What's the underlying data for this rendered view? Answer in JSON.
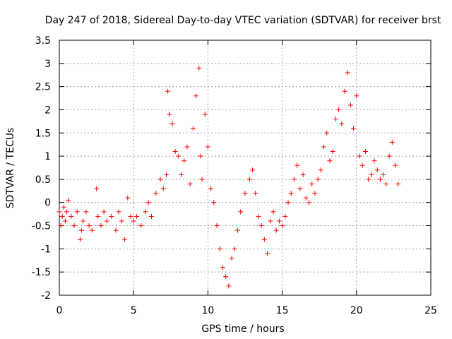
{
  "chart_data": {
    "type": "scatter",
    "title": "Day 247 of 2018, Sidereal Day-to-day VTEC variation (SDTVAR) for receiver brst",
    "xlabel": "GPS time / hours",
    "ylabel": "SDTVAR / TECUs",
    "xlim": [
      0,
      25
    ],
    "ylim": [
      -2,
      3.5
    ],
    "xticks": [
      0,
      5,
      10,
      15,
      20,
      25
    ],
    "xtick_labels": [
      "0",
      "5",
      "10",
      "15",
      "20",
      "25"
    ],
    "yticks": [
      -2,
      -1.5,
      -1,
      -0.5,
      0,
      0.5,
      1,
      1.5,
      2,
      2.5,
      3,
      3.5
    ],
    "ytick_labels": [
      "-2",
      "-1.5",
      "-1",
      "-0.5",
      "0",
      "0.5",
      "1",
      "1.5",
      "2",
      "2.5",
      "3",
      "3.5"
    ],
    "grid": true,
    "marker": "+",
    "marker_color": "#ff0000",
    "series": [
      {
        "name": "SDTVAR",
        "x": [
          0.0,
          0.1,
          0.2,
          0.3,
          0.4,
          0.5,
          0.6,
          0.8,
          1.0,
          1.2,
          1.4,
          1.5,
          1.6,
          1.8,
          2.0,
          2.2,
          2.5,
          2.6,
          2.8,
          3.0,
          3.2,
          3.5,
          3.8,
          4.0,
          4.2,
          4.4,
          4.6,
          4.8,
          5.0,
          5.2,
          5.5,
          5.8,
          6.0,
          6.2,
          6.5,
          6.8,
          7.0,
          7.2,
          7.3,
          7.4,
          7.6,
          7.8,
          8.0,
          8.2,
          8.4,
          8.6,
          8.8,
          9.0,
          9.2,
          9.4,
          9.5,
          9.6,
          9.8,
          10.0,
          10.2,
          10.4,
          10.6,
          10.8,
          11.0,
          11.2,
          11.4,
          11.6,
          11.8,
          12.0,
          12.2,
          12.5,
          12.8,
          13.0,
          13.2,
          13.4,
          13.6,
          13.8,
          14.0,
          14.2,
          14.4,
          14.6,
          14.8,
          15.0,
          15.2,
          15.4,
          15.6,
          15.8,
          16.0,
          16.2,
          16.4,
          16.6,
          16.8,
          17.0,
          17.2,
          17.4,
          17.6,
          17.8,
          18.0,
          18.2,
          18.4,
          18.6,
          18.8,
          19.0,
          19.2,
          19.4,
          19.6,
          19.8,
          20.0,
          20.2,
          20.4,
          20.6,
          20.8,
          21.0,
          21.2,
          21.4,
          21.6,
          21.8,
          22.0,
          22.2,
          22.4,
          22.6,
          22.8
        ],
        "y": [
          -0.2,
          -0.5,
          -0.3,
          -0.1,
          -0.4,
          -0.2,
          0.05,
          -0.3,
          -0.5,
          -0.2,
          -0.8,
          -0.6,
          -0.4,
          -0.2,
          -0.5,
          -0.6,
          0.3,
          -0.3,
          -0.5,
          -0.2,
          -0.4,
          -0.3,
          -0.6,
          -0.2,
          -0.4,
          -0.8,
          0.1,
          -0.3,
          -0.4,
          -0.3,
          -0.5,
          -0.2,
          0.0,
          -0.3,
          0.2,
          0.5,
          0.3,
          0.6,
          2.4,
          1.9,
          1.7,
          1.1,
          1.0,
          0.6,
          0.9,
          1.2,
          0.4,
          1.6,
          2.3,
          2.9,
          1.0,
          0.5,
          1.9,
          1.2,
          0.3,
          0.0,
          -0.5,
          -1.0,
          -1.4,
          -1.6,
          -1.8,
          -1.2,
          -1.0,
          -0.6,
          -0.2,
          0.2,
          0.5,
          0.7,
          0.2,
          -0.3,
          -0.5,
          -0.8,
          -1.1,
          -0.4,
          -0.2,
          -0.6,
          -0.4,
          -0.5,
          -0.3,
          0.0,
          0.2,
          0.5,
          0.8,
          0.3,
          0.6,
          0.1,
          0.0,
          0.4,
          0.2,
          0.5,
          0.7,
          1.2,
          1.5,
          0.9,
          1.1,
          1.8,
          2.0,
          1.7,
          2.4,
          2.8,
          2.1,
          1.6,
          2.3,
          1.0,
          0.8,
          1.1,
          0.5,
          0.6,
          0.9,
          0.7,
          0.5,
          0.6,
          0.4,
          1.0,
          1.3,
          0.8,
          0.4
        ]
      }
    ]
  }
}
